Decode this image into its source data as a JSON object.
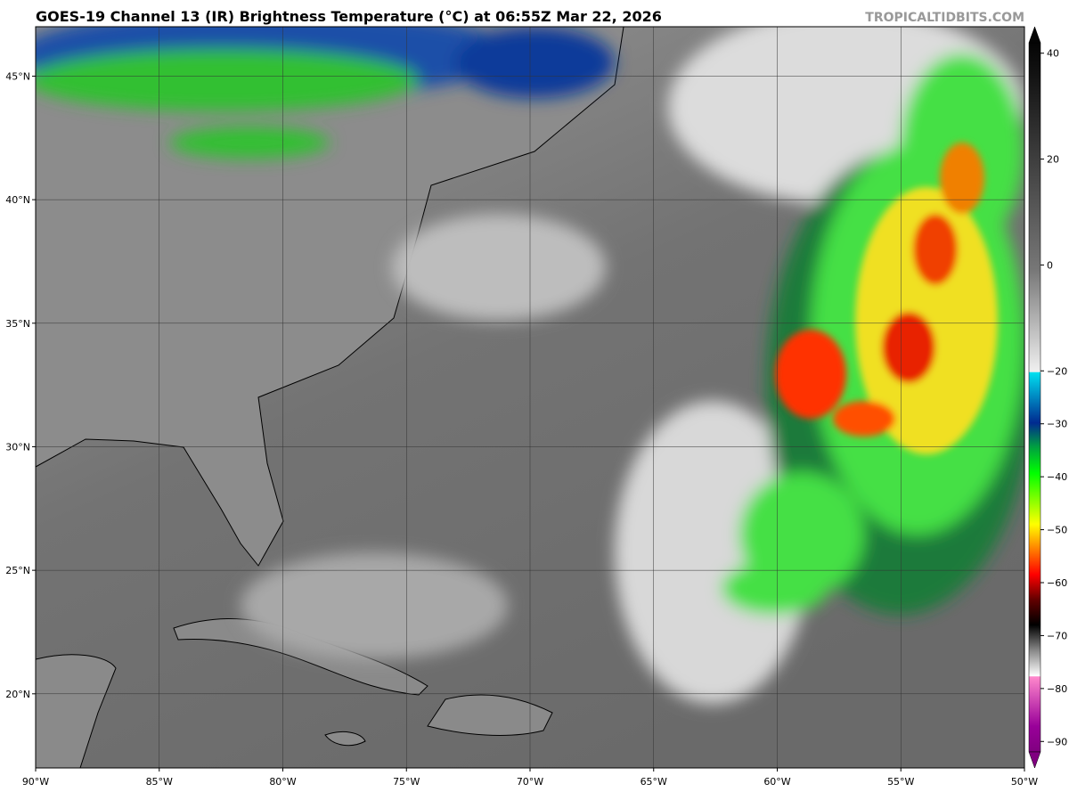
{
  "header": {
    "title": "GOES-19 Channel 13 (IR) Brightness Temperature (°C) at 06:55Z Mar 22, 2026",
    "site": "TROPICALTIDBITS.COM"
  },
  "map": {
    "xlim": [
      -90,
      -50
    ],
    "ylim": [
      17,
      47
    ],
    "lon_labels": [
      {
        "value": -90,
        "label": "90°W"
      },
      {
        "value": -85,
        "label": "85°W"
      },
      {
        "value": -80,
        "label": "80°W"
      },
      {
        "value": -75,
        "label": "75°W"
      },
      {
        "value": -70,
        "label": "70°W"
      },
      {
        "value": -65,
        "label": "65°W"
      },
      {
        "value": -60,
        "label": "60°W"
      },
      {
        "value": -55,
        "label": "55°W"
      },
      {
        "value": -50,
        "label": "50°W"
      }
    ],
    "lat_labels": [
      {
        "value": 45,
        "label": "45°N"
      },
      {
        "value": 40,
        "label": "40°N"
      },
      {
        "value": 35,
        "label": "35°N"
      },
      {
        "value": 30,
        "label": "30°N"
      },
      {
        "value": 25,
        "label": "25°N"
      },
      {
        "value": 20,
        "label": "20°N"
      }
    ]
  },
  "colorbar": {
    "lim": [
      -95,
      45
    ],
    "ticks": [
      40,
      20,
      0,
      {
        "value": -20,
        "label": "−20"
      },
      {
        "value": -30,
        "label": "−30"
      },
      {
        "value": -40,
        "label": "−40"
      },
      {
        "value": -50,
        "label": "−50"
      },
      {
        "value": -60,
        "label": "−60"
      },
      {
        "value": -70,
        "label": "−70"
      },
      {
        "value": -80,
        "label": "−80"
      },
      {
        "value": -90,
        "label": "−90"
      }
    ]
  }
}
